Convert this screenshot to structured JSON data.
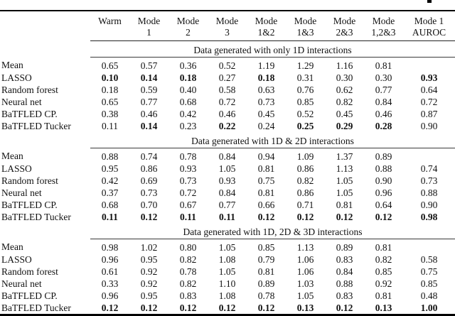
{
  "page": {
    "background": "#ffffff",
    "text_color": "#111111",
    "rule_color": "#000000"
  },
  "table": {
    "header": {
      "row_label_column": "",
      "columns": [
        {
          "line1": "Warm",
          "line2": ""
        },
        {
          "line1": "Mode",
          "line2": "1"
        },
        {
          "line1": "Mode",
          "line2": "2"
        },
        {
          "line1": "Mode",
          "line2": "3"
        },
        {
          "line1": "Mode",
          "line2": "1&2"
        },
        {
          "line1": "Mode",
          "line2": "1&3"
        },
        {
          "line1": "Mode",
          "line2": "2&3"
        },
        {
          "line1": "Mode",
          "line2": "1,2&3"
        },
        {
          "line1": "Mode 1",
          "line2": "AUROC"
        }
      ]
    },
    "sections": [
      {
        "title": "Data generated with only 1D interactions",
        "rows": [
          {
            "label": "Mean",
            "values": [
              "0.65",
              "0.57",
              "0.36",
              "0.52",
              "1.19",
              "1.29",
              "1.16",
              "0.81",
              ""
            ],
            "bold": []
          },
          {
            "label": "LASSO",
            "values": [
              "0.10",
              "0.14",
              "0.18",
              "0.27",
              "0.18",
              "0.31",
              "0.30",
              "0.30",
              "0.93"
            ],
            "bold": [
              0,
              1,
              2,
              4,
              8
            ]
          },
          {
            "label": "Random forest",
            "values": [
              "0.18",
              "0.59",
              "0.40",
              "0.58",
              "0.63",
              "0.76",
              "0.62",
              "0.77",
              "0.64"
            ],
            "bold": []
          },
          {
            "label": "Neural net",
            "values": [
              "0.65",
              "0.77",
              "0.68",
              "0.72",
              "0.73",
              "0.85",
              "0.82",
              "0.84",
              "0.72"
            ],
            "bold": []
          },
          {
            "label": "BaTFLED CP.",
            "values": [
              "0.38",
              "0.46",
              "0.42",
              "0.46",
              "0.45",
              "0.52",
              "0.45",
              "0.46",
              "0.87"
            ],
            "bold": []
          },
          {
            "label": "BaTFLED Tucker",
            "values": [
              "0.11",
              "0.14",
              "0.23",
              "0.22",
              "0.24",
              "0.25",
              "0.29",
              "0.28",
              "0.90"
            ],
            "bold": [
              1,
              3,
              5,
              6,
              7
            ]
          }
        ]
      },
      {
        "title": "Data generated with 1D & 2D interactions",
        "rows": [
          {
            "label": "Mean",
            "values": [
              "0.88",
              "0.74",
              "0.78",
              "0.84",
              "0.94",
              "1.09",
              "1.37",
              "0.89",
              ""
            ],
            "bold": []
          },
          {
            "label": "LASSO",
            "values": [
              "0.95",
              "0.86",
              "0.93",
              "1.05",
              "0.81",
              "0.86",
              "1.13",
              "0.88",
              "0.74"
            ],
            "bold": []
          },
          {
            "label": "Random forest",
            "values": [
              "0.42",
              "0.69",
              "0.73",
              "0.93",
              "0.75",
              "0.82",
              "1.05",
              "0.90",
              "0.73"
            ],
            "bold": []
          },
          {
            "label": "Neural net",
            "values": [
              "0.37",
              "0.73",
              "0.72",
              "0.84",
              "0.81",
              "0.86",
              "1.05",
              "0.96",
              "0.88"
            ],
            "bold": []
          },
          {
            "label": "BaTFLED CP.",
            "values": [
              "0.68",
              "0.70",
              "0.67",
              "0.77",
              "0.66",
              "0.71",
              "0.81",
              "0.64",
              "0.90"
            ],
            "bold": []
          },
          {
            "label": "BaTFLED Tucker",
            "values": [
              "0.11",
              "0.12",
              "0.11",
              "0.11",
              "0.12",
              "0.12",
              "0.12",
              "0.12",
              "0.98"
            ],
            "bold": [
              0,
              1,
              2,
              3,
              4,
              5,
              6,
              7,
              8
            ]
          }
        ]
      },
      {
        "title": "Data generated with 1D, 2D & 3D interactions",
        "rows": [
          {
            "label": "Mean",
            "values": [
              "0.98",
              "1.02",
              "0.80",
              "1.05",
              "0.85",
              "1.13",
              "0.89",
              "0.81",
              ""
            ],
            "bold": []
          },
          {
            "label": "LASSO",
            "values": [
              "0.96",
              "0.95",
              "0.82",
              "1.08",
              "0.79",
              "1.06",
              "0.83",
              "0.82",
              "0.58"
            ],
            "bold": []
          },
          {
            "label": "Random forest",
            "values": [
              "0.61",
              "0.92",
              "0.78",
              "1.05",
              "0.81",
              "1.06",
              "0.84",
              "0.85",
              "0.75"
            ],
            "bold": []
          },
          {
            "label": "Neural net",
            "values": [
              "0.33",
              "0.92",
              "0.82",
              "1.10",
              "0.89",
              "1.03",
              "0.88",
              "0.92",
              "0.85"
            ],
            "bold": []
          },
          {
            "label": "BaTFLED CP.",
            "values": [
              "0.96",
              "0.95",
              "0.83",
              "1.08",
              "0.78",
              "1.05",
              "0.83",
              "0.81",
              "0.48"
            ],
            "bold": []
          },
          {
            "label": "BaTFLED Tucker",
            "values": [
              "0.12",
              "0.12",
              "0.12",
              "0.12",
              "0.12",
              "0.13",
              "0.12",
              "0.13",
              "1.00"
            ],
            "bold": [
              0,
              1,
              2,
              3,
              4,
              5,
              6,
              7,
              8
            ]
          }
        ]
      }
    ]
  }
}
